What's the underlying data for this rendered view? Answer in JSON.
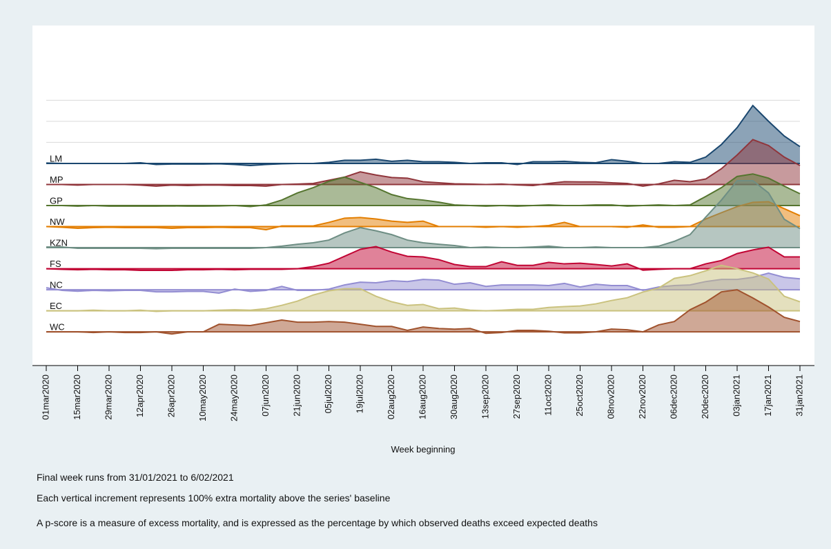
{
  "chart_data": {
    "type": "ridgeline",
    "xlabel": "Week beginning",
    "notes": [
      "Final week runs from 31/01/2021 to  6/02/2021",
      "Each vertical increment represents 100% extra mortality above the series' baseline",
      "A p-score is a measure of excess mortality, and is expressed as the percentage by which observed deaths exceed expected deaths"
    ],
    "categories": [
      "01mar2020",
      null,
      "15mar2020",
      null,
      "29mar2020",
      null,
      "12apr2020",
      null,
      "26apr2020",
      null,
      "10may2020",
      null,
      "24may2020",
      null,
      "07jun2020",
      null,
      "21jun2020",
      null,
      "05jul2020",
      null,
      "19jul2020",
      null,
      "02aug2020",
      null,
      "16aug2020",
      null,
      "30aug2020",
      null,
      "13sep2020",
      null,
      "27sep2020",
      null,
      "11oct2020",
      null,
      "25oct2020",
      null,
      "08nov2020",
      null,
      "22nov2020",
      null,
      "06dec2020",
      null,
      "20dec2020",
      null,
      "03jan2021",
      null,
      "17jan2021",
      null,
      "31jan2021"
    ],
    "ylim": [
      -960,
      655
    ],
    "yticks": [
      100,
      200,
      300
    ],
    "grid": true,
    "series": [
      {
        "name": "LM",
        "color": "#1a476f",
        "values": [
          2,
          0,
          0,
          0,
          0,
          0,
          3,
          -5,
          -3,
          -3,
          -3,
          -2,
          -5,
          -10,
          -5,
          -2,
          0,
          0,
          5,
          15,
          15,
          20,
          10,
          15,
          8,
          8,
          5,
          0,
          3,
          3,
          -5,
          8,
          8,
          10,
          5,
          3,
          18,
          10,
          0,
          0,
          8,
          5,
          30,
          90,
          170,
          275,
          200,
          130,
          80
        ]
      },
      {
        "name": "MP",
        "color": "#90353b",
        "values": [
          0,
          0,
          -3,
          0,
          0,
          0,
          -3,
          -8,
          -3,
          -5,
          -3,
          -3,
          -5,
          -5,
          -8,
          0,
          2,
          5,
          20,
          35,
          60,
          45,
          33,
          30,
          13,
          8,
          3,
          2,
          0,
          2,
          -2,
          -5,
          5,
          13,
          12,
          12,
          8,
          5,
          -8,
          3,
          20,
          13,
          26,
          75,
          140,
          213,
          185,
          130,
          90
        ]
      },
      {
        "name": "GP",
        "color": "#55752f",
        "values": [
          0,
          0,
          -3,
          0,
          -3,
          -3,
          -3,
          -3,
          -2,
          -3,
          -3,
          -2,
          0,
          -5,
          3,
          26,
          60,
          85,
          115,
          135,
          110,
          85,
          52,
          33,
          26,
          16,
          3,
          0,
          -3,
          0,
          -3,
          0,
          3,
          0,
          0,
          3,
          3,
          -3,
          0,
          3,
          0,
          3,
          43,
          85,
          138,
          150,
          130,
          92,
          56
        ]
      },
      {
        "name": "NW",
        "color": "#e37e00",
        "values": [
          0,
          -3,
          -8,
          -5,
          -3,
          -5,
          -5,
          -5,
          -8,
          -5,
          -5,
          -3,
          -5,
          -5,
          -15,
          3,
          3,
          3,
          20,
          40,
          43,
          36,
          26,
          20,
          26,
          0,
          0,
          0,
          -3,
          0,
          -3,
          0,
          5,
          20,
          0,
          0,
          0,
          -3,
          8,
          -3,
          -3,
          0,
          36,
          66,
          95,
          115,
          118,
          85,
          52
        ]
      },
      {
        "name": "KZN",
        "color": "#6e8e84",
        "values": [
          3,
          3,
          -3,
          -3,
          -3,
          -3,
          -3,
          -5,
          -3,
          -3,
          -3,
          -3,
          -3,
          -3,
          0,
          7,
          16,
          23,
          36,
          70,
          95,
          80,
          62,
          36,
          23,
          16,
          10,
          0,
          3,
          0,
          0,
          3,
          7,
          0,
          0,
          3,
          0,
          0,
          0,
          7,
          30,
          62,
          145,
          226,
          318,
          318,
          260,
          135,
          90
        ]
      },
      {
        "name": "FS",
        "color": "#c10534",
        "values": [
          0,
          -3,
          -5,
          -3,
          -5,
          -5,
          -8,
          -8,
          -8,
          -5,
          -5,
          -3,
          -5,
          -3,
          -3,
          -3,
          0,
          10,
          26,
          59,
          92,
          105,
          79,
          59,
          56,
          43,
          20,
          10,
          10,
          33,
          16,
          16,
          30,
          23,
          26,
          20,
          13,
          23,
          -7,
          -3,
          0,
          0,
          23,
          39,
          72,
          89,
          102,
          56,
          56
        ]
      },
      {
        "name": "NC",
        "color": "#938dd2",
        "values": [
          10,
          -3,
          -7,
          -3,
          -5,
          -3,
          -3,
          -10,
          -10,
          -8,
          -8,
          -16,
          3,
          -8,
          -3,
          16,
          -3,
          -3,
          3,
          23,
          36,
          33,
          43,
          39,
          49,
          46,
          26,
          33,
          16,
          23,
          23,
          23,
          20,
          30,
          13,
          26,
          20,
          20,
          -3,
          13,
          20,
          23,
          39,
          49,
          49,
          59,
          79,
          59,
          52
        ]
      },
      {
        "name": "EC",
        "color": "#cac27e",
        "values": [
          0,
          0,
          0,
          3,
          0,
          0,
          3,
          -3,
          0,
          0,
          0,
          3,
          5,
          3,
          10,
          26,
          46,
          75,
          95,
          105,
          105,
          69,
          43,
          26,
          30,
          10,
          13,
          3,
          0,
          3,
          7,
          7,
          16,
          20,
          23,
          33,
          49,
          62,
          89,
          108,
          154,
          167,
          190,
          216,
          200,
          180,
          151,
          69,
          43
        ]
      },
      {
        "name": "WC",
        "color": "#a0522d",
        "values": [
          0,
          0,
          0,
          -3,
          0,
          -3,
          -3,
          0,
          -10,
          0,
          0,
          36,
          33,
          30,
          43,
          56,
          46,
          46,
          49,
          46,
          36,
          26,
          26,
          7,
          23,
          16,
          13,
          16,
          -7,
          -3,
          7,
          7,
          3,
          -5,
          -5,
          0,
          13,
          10,
          0,
          33,
          49,
          105,
          141,
          190,
          200,
          161,
          118,
          69,
          49
        ]
      }
    ]
  }
}
